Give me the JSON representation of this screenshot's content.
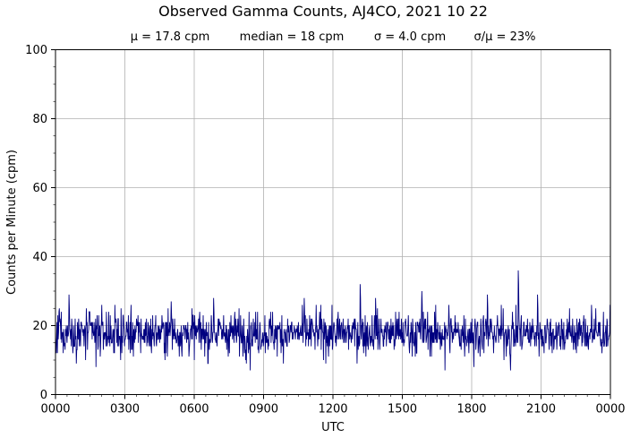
{
  "chart_data": {
    "type": "line",
    "title": "Observed Gamma Counts, AJ4CO, 2021 10 22",
    "stats": {
      "mean": "μ = 17.8 cpm",
      "median": "median = 18 cpm",
      "sigma": "σ = 4.0 cpm",
      "ratio": "σ/μ = 23%"
    },
    "xlabel": "UTC",
    "ylabel": "Counts per Minute (cpm)",
    "x_ticks": [
      "0000",
      "0300",
      "0600",
      "0900",
      "1200",
      "1500",
      "1800",
      "2100",
      "0000"
    ],
    "y_ticks": [
      0,
      20,
      40,
      60,
      80,
      100
    ],
    "xlim_minutes": [
      0,
      1440
    ],
    "ylim": [
      0,
      100
    ],
    "grid": true,
    "colors": {
      "series": "#000080",
      "grid": "#b0b0b0"
    },
    "series": [
      {
        "x_unit": "minute of day",
        "y_mean": 17.8,
        "y_median": 18,
        "y_std": 4.0,
        "samples": 1440,
        "peaks": [
          {
            "minute": 10,
            "value": 25
          },
          {
            "minute": 35,
            "value": 29
          },
          {
            "minute": 300,
            "value": 27
          },
          {
            "minute": 410,
            "value": 28
          },
          {
            "minute": 645,
            "value": 28
          },
          {
            "minute": 790,
            "value": 32
          },
          {
            "minute": 830,
            "value": 28
          },
          {
            "minute": 950,
            "value": 30
          },
          {
            "minute": 1020,
            "value": 26
          },
          {
            "minute": 1120,
            "value": 29
          },
          {
            "minute": 1200,
            "value": 36
          },
          {
            "minute": 1250,
            "value": 29
          },
          {
            "minute": 1390,
            "value": 26
          }
        ],
        "troughs": [
          {
            "minute": 105,
            "value": 8
          },
          {
            "minute": 395,
            "value": 9
          },
          {
            "minute": 505,
            "value": 7
          },
          {
            "minute": 1010,
            "value": 7
          },
          {
            "minute": 1085,
            "value": 8
          },
          {
            "minute": 1180,
            "value": 7
          }
        ]
      }
    ]
  }
}
